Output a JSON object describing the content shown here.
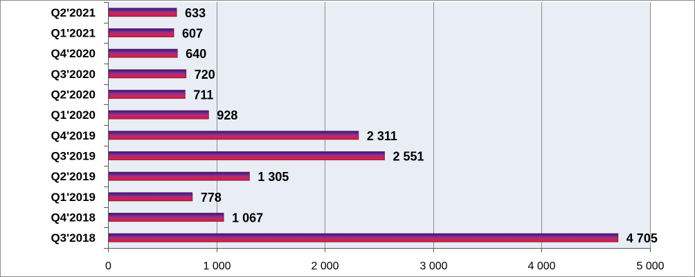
{
  "chart_data": {
    "type": "bar",
    "orientation": "horizontal",
    "categories": [
      "Q2'2021",
      "Q1'2021",
      "Q4'2020",
      "Q3'2020",
      "Q2'2020",
      "Q1'2020",
      "Q4'2019",
      "Q3'2019",
      "Q2'2019",
      "Q1'2019",
      "Q4'2018",
      "Q3'2018"
    ],
    "values": [
      633,
      607,
      640,
      720,
      711,
      928,
      2311,
      2551,
      1305,
      778,
      1067,
      4705
    ],
    "value_labels": [
      "633",
      "607",
      "640",
      "720",
      "711",
      "928",
      "2 311",
      "2 551",
      "1 305",
      "778",
      "1 067",
      "4 705"
    ],
    "xlim": [
      0,
      5000
    ],
    "x_ticks": [
      0,
      1000,
      2000,
      3000,
      4000,
      5000
    ],
    "x_tick_labels": [
      "0",
      "1 000",
      "2 000",
      "3 000",
      "4 000",
      "5 000"
    ],
    "title": "",
    "xlabel": "",
    "ylabel": "",
    "grid": "vertical",
    "legend": "none",
    "colors": {
      "plot_background": "#e9edf5",
      "gridline": "#8c8c8c",
      "bar_gradient_top": "#1e1e9c",
      "bar_gradient_mid": "#a8307a",
      "bar_gradient_bottom": "#e8173a",
      "bar_outline": "#7a1030"
    }
  }
}
